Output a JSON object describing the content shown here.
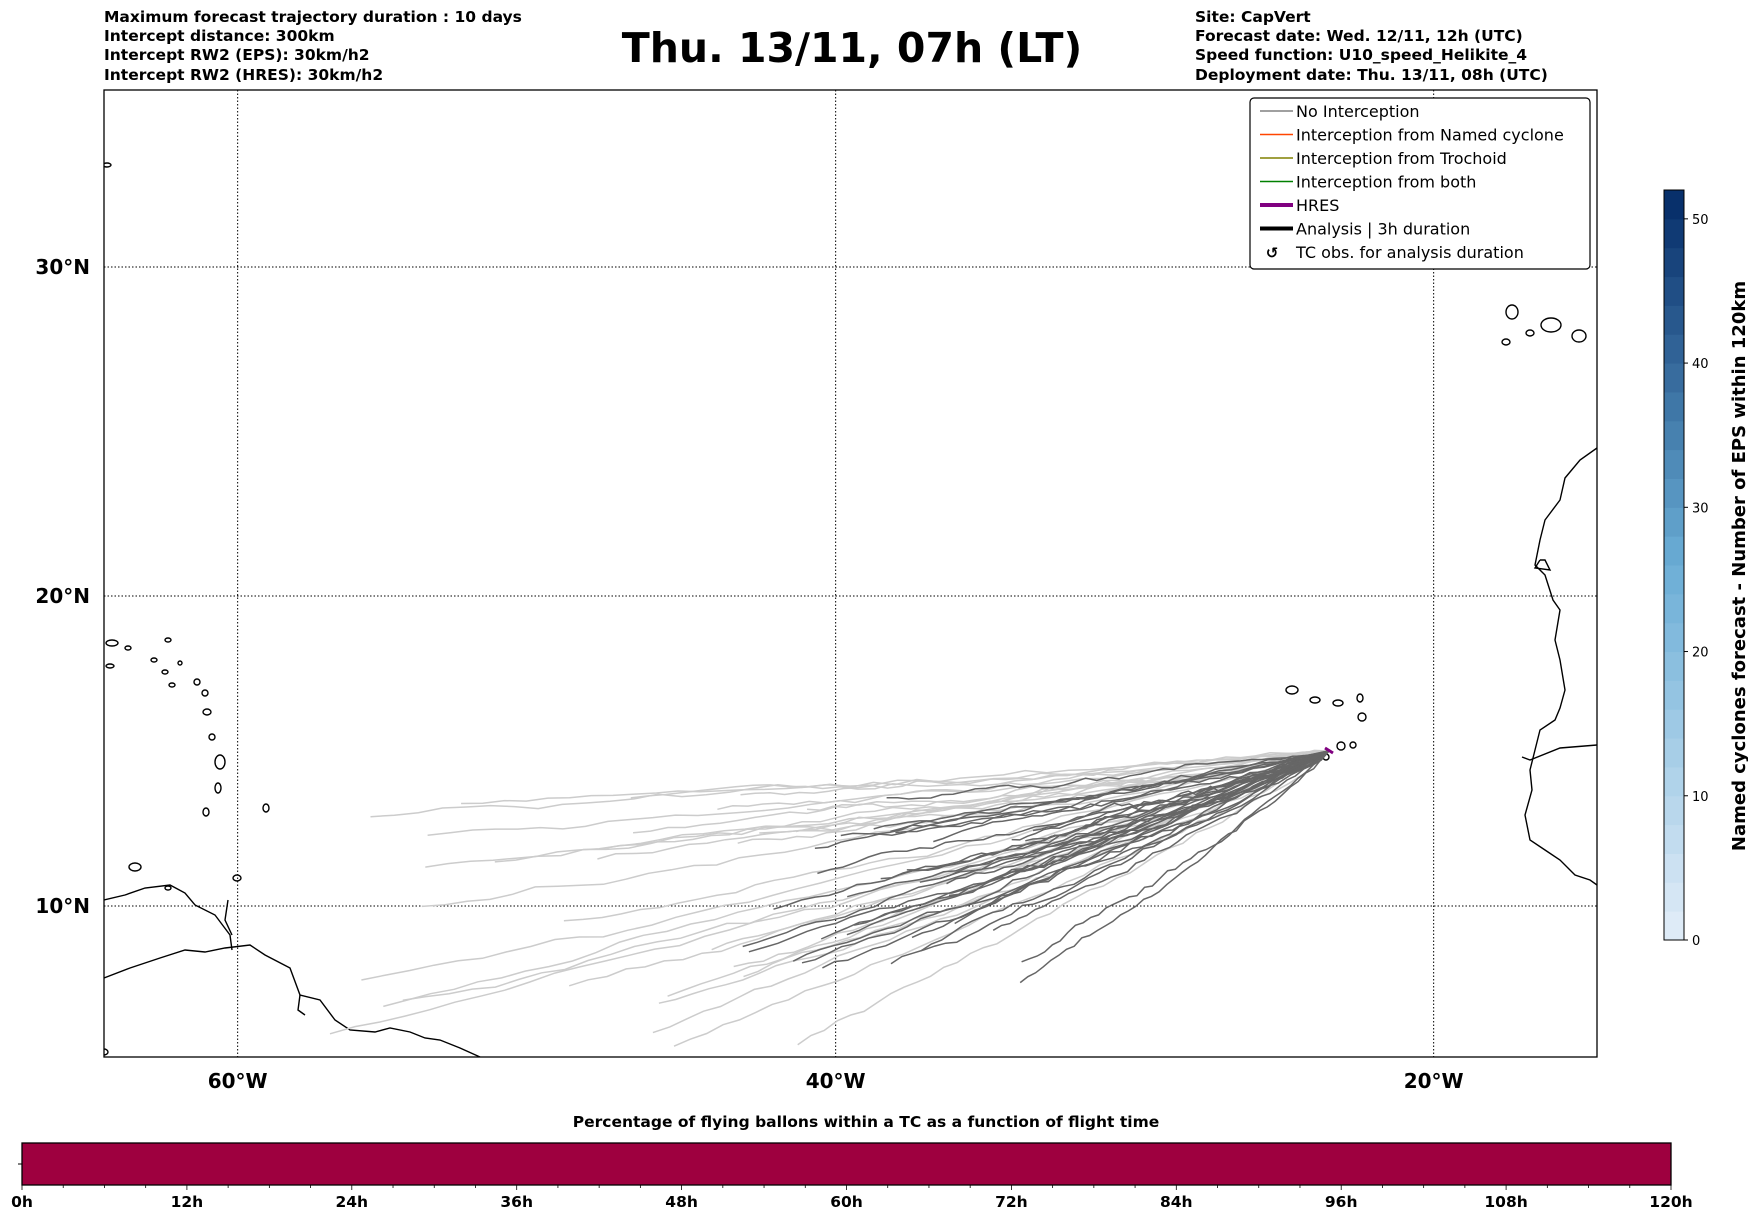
{
  "header": {
    "left": [
      "Maximum forecast trajectory duration : 10 days",
      "Intercept distance: 300km",
      "Intercept RW2 (EPS):  30km/h2",
      "Intercept RW2 (HRES): 30km/h2"
    ],
    "title": "Thu. 13/11, 07h (LT)",
    "right": [
      "Site: CapVert",
      "Forecast date: Wed. 12/11, 12h (UTC)",
      "Speed function: U10_speed_Helikite_4",
      "Deployment date: Thu. 13/11, 08h (UTC)"
    ]
  },
  "chart_data": [
    {
      "type": "map-trajectories",
      "lon_ticks": [
        "60°W",
        "40°W",
        "20°W"
      ],
      "lon_values": [
        -60,
        -40,
        -20
      ],
      "lat_ticks": [
        "30°N",
        "20°N",
        "10°N"
      ],
      "lat_values": [
        30,
        20,
        10
      ],
      "lon_range": [
        -65,
        -15
      ],
      "lat_range": [
        5,
        35
      ],
      "grid": true,
      "launch_site": {
        "lon": -23.5,
        "lat": 15.0
      },
      "legend_placement": "top-right",
      "legend": [
        {
          "label": "No Interception",
          "color": "#808080",
          "style": "thin"
        },
        {
          "label": "Interception from Named cyclone",
          "color": "#ff4500",
          "style": "thin"
        },
        {
          "label": "Interception from Trochoid",
          "color": "#808000",
          "style": "thin"
        },
        {
          "label": "Interception from both",
          "color": "#008000",
          "style": "thin"
        },
        {
          "label": "HRES",
          "color": "#800080",
          "style": "thick"
        },
        {
          "label": "Analysis | 3h duration",
          "color": "#000000",
          "style": "thick"
        },
        {
          "label": "TC obs. for analysis duration",
          "color": "#000000",
          "style": "marker"
        }
      ]
    },
    {
      "type": "colorbar",
      "label": "Named cyclones forecast - Number of EPS within 120km",
      "range": [
        0,
        52
      ],
      "ticks": [
        "0",
        "10",
        "20",
        "30",
        "40",
        "50"
      ],
      "tick_values": [
        0,
        10,
        20,
        30,
        40,
        50
      ]
    },
    {
      "type": "bar",
      "title": "Percentage of flying ballons within a TC as a function of flight time",
      "xlim": [
        0,
        120
      ],
      "ticks": [
        "0h",
        "12h",
        "24h",
        "36h",
        "48h",
        "60h",
        "72h",
        "84h",
        "96h",
        "108h",
        "120h"
      ],
      "tick_values": [
        0,
        12,
        24,
        36,
        48,
        60,
        72,
        84,
        96,
        108,
        120
      ],
      "fill_color": "#9e003f"
    }
  ]
}
